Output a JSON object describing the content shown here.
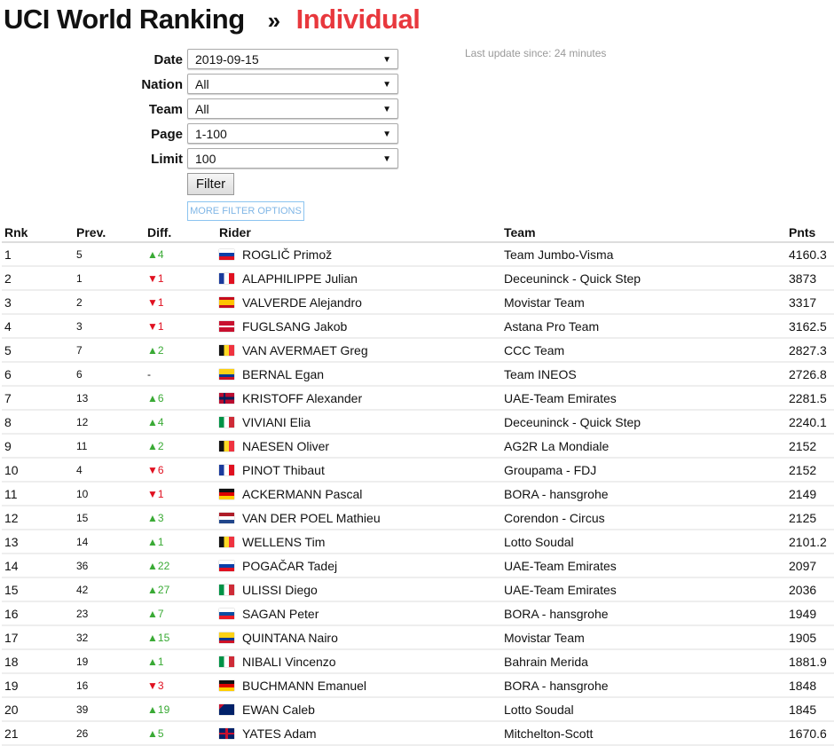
{
  "header": {
    "title": "UCI World Ranking",
    "separator": "»",
    "subtitle": "Individual"
  },
  "last_update": "Last update since: 24 minutes",
  "filters": [
    {
      "label": "Date",
      "value": "2019-09-15"
    },
    {
      "label": "Nation",
      "value": "All"
    },
    {
      "label": "Team",
      "value": "All"
    },
    {
      "label": "Page",
      "value": "1-100"
    },
    {
      "label": "Limit",
      "value": "100"
    }
  ],
  "filter_button": "Filter",
  "more_filter_options": "MORE FILTER OPTIONS",
  "colors": {
    "accent": "#e8383d",
    "up": "#3aaa35",
    "down": "#e01020"
  },
  "table": {
    "columns": [
      "Rnk",
      "Prev.",
      "Diff.",
      "Rider",
      "Team",
      "Pnts"
    ],
    "rows": [
      {
        "rnk": "1",
        "prev": "5",
        "dir": "up",
        "diff": "4",
        "flag": "SLO",
        "rider": "ROGLIČ Primož",
        "team": "Team Jumbo-Visma",
        "pnts": "4160.3"
      },
      {
        "rnk": "2",
        "prev": "1",
        "dir": "down",
        "diff": "1",
        "flag": "FRA",
        "rider": "ALAPHILIPPE Julian",
        "team": "Deceuninck - Quick Step",
        "pnts": "3873"
      },
      {
        "rnk": "3",
        "prev": "2",
        "dir": "down",
        "diff": "1",
        "flag": "ESP",
        "rider": "VALVERDE Alejandro",
        "team": "Movistar Team",
        "pnts": "3317"
      },
      {
        "rnk": "4",
        "prev": "3",
        "dir": "down",
        "diff": "1",
        "flag": "DEN",
        "rider": "FUGLSANG Jakob",
        "team": "Astana Pro Team",
        "pnts": "3162.5"
      },
      {
        "rnk": "5",
        "prev": "7",
        "dir": "up",
        "diff": "2",
        "flag": "BEL",
        "rider": "VAN AVERMAET Greg",
        "team": "CCC Team",
        "pnts": "2827.3"
      },
      {
        "rnk": "6",
        "prev": "6",
        "dir": "none",
        "diff": "-",
        "flag": "COL",
        "rider": "BERNAL Egan",
        "team": "Team INEOS",
        "pnts": "2726.8"
      },
      {
        "rnk": "7",
        "prev": "13",
        "dir": "up",
        "diff": "6",
        "flag": "NOR",
        "rider": "KRISTOFF Alexander",
        "team": "UAE-Team Emirates",
        "pnts": "2281.5"
      },
      {
        "rnk": "8",
        "prev": "12",
        "dir": "up",
        "diff": "4",
        "flag": "ITA",
        "rider": "VIVIANI Elia",
        "team": "Deceuninck - Quick Step",
        "pnts": "2240.1"
      },
      {
        "rnk": "9",
        "prev": "11",
        "dir": "up",
        "diff": "2",
        "flag": "BEL",
        "rider": "NAESEN Oliver",
        "team": "AG2R La Mondiale",
        "pnts": "2152"
      },
      {
        "rnk": "10",
        "prev": "4",
        "dir": "down",
        "diff": "6",
        "flag": "FRA",
        "rider": "PINOT Thibaut",
        "team": "Groupama - FDJ",
        "pnts": "2152"
      },
      {
        "rnk": "11",
        "prev": "10",
        "dir": "down",
        "diff": "1",
        "flag": "GER",
        "rider": "ACKERMANN Pascal",
        "team": "BORA - hansgrohe",
        "pnts": "2149"
      },
      {
        "rnk": "12",
        "prev": "15",
        "dir": "up",
        "diff": "3",
        "flag": "NED",
        "rider": "VAN DER POEL Mathieu",
        "team": "Corendon - Circus",
        "pnts": "2125"
      },
      {
        "rnk": "13",
        "prev": "14",
        "dir": "up",
        "diff": "1",
        "flag": "BEL",
        "rider": "WELLENS Tim",
        "team": "Lotto Soudal",
        "pnts": "2101.2"
      },
      {
        "rnk": "14",
        "prev": "36",
        "dir": "up",
        "diff": "22",
        "flag": "SLO",
        "rider": "POGAČAR Tadej",
        "team": "UAE-Team Emirates",
        "pnts": "2097"
      },
      {
        "rnk": "15",
        "prev": "42",
        "dir": "up",
        "diff": "27",
        "flag": "ITA",
        "rider": "ULISSI Diego",
        "team": "UAE-Team Emirates",
        "pnts": "2036"
      },
      {
        "rnk": "16",
        "prev": "23",
        "dir": "up",
        "diff": "7",
        "flag": "SVK",
        "rider": "SAGAN Peter",
        "team": "BORA - hansgrohe",
        "pnts": "1949"
      },
      {
        "rnk": "17",
        "prev": "32",
        "dir": "up",
        "diff": "15",
        "flag": "COL",
        "rider": "QUINTANA Nairo",
        "team": "Movistar Team",
        "pnts": "1905"
      },
      {
        "rnk": "18",
        "prev": "19",
        "dir": "up",
        "diff": "1",
        "flag": "ITA",
        "rider": "NIBALI Vincenzo",
        "team": "Bahrain Merida",
        "pnts": "1881.9"
      },
      {
        "rnk": "19",
        "prev": "16",
        "dir": "down",
        "diff": "3",
        "flag": "GER",
        "rider": "BUCHMANN Emanuel",
        "team": "BORA - hansgrohe",
        "pnts": "1848"
      },
      {
        "rnk": "20",
        "prev": "39",
        "dir": "up",
        "diff": "19",
        "flag": "AUS",
        "rider": "EWAN Caleb",
        "team": "Lotto Soudal",
        "pnts": "1845"
      },
      {
        "rnk": "21",
        "prev": "26",
        "dir": "up",
        "diff": "5",
        "flag": "GBR",
        "rider": "YATES Adam",
        "team": "Mitchelton-Scott",
        "pnts": "1670.6"
      }
    ]
  }
}
